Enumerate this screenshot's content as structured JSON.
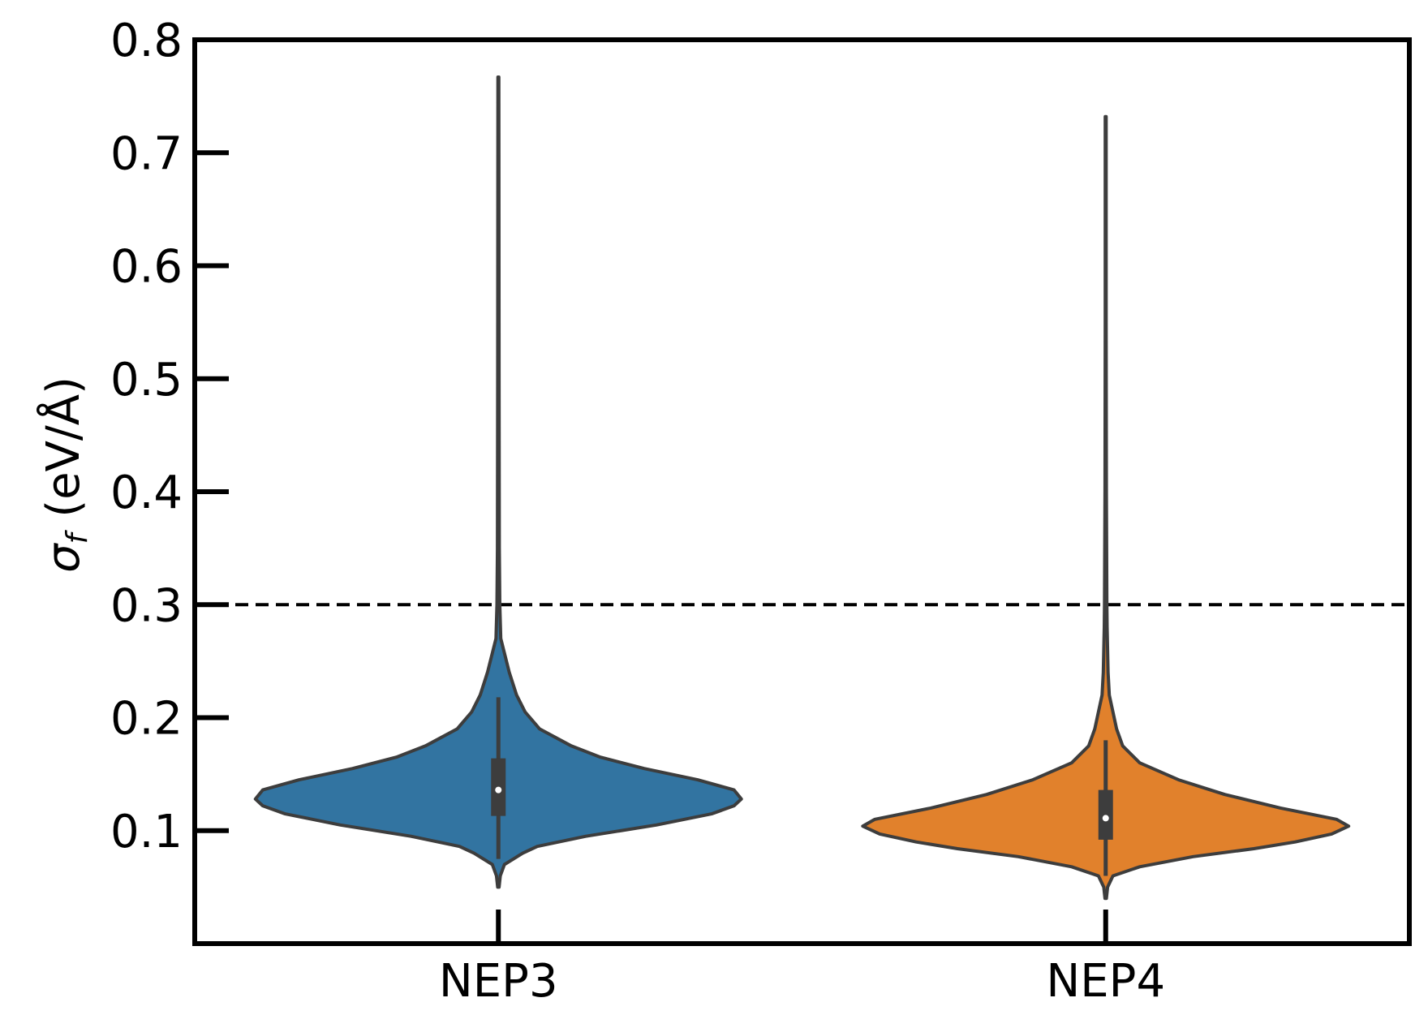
{
  "chart_data": {
    "type": "violin",
    "title": "",
    "xlabel": "",
    "ylabel": {
      "symbol": "σ",
      "subscript": "f",
      "unit": "(eV/Å)"
    },
    "ylim": [
      0.0,
      0.8
    ],
    "yticks": [
      0.1,
      0.2,
      0.3,
      0.4,
      0.5,
      0.6,
      0.7,
      0.8
    ],
    "ytick_labels": [
      "0.1",
      "0.2",
      "0.3",
      "0.4",
      "0.5",
      "0.6",
      "0.7",
      "0.8"
    ],
    "categories": [
      "NEP3",
      "NEP4"
    ],
    "reference_line": {
      "y": 0.3,
      "style": "dashed",
      "color": "#000000"
    },
    "grid": false,
    "series": [
      {
        "category": "NEP3",
        "color": "#3274a1",
        "min": 0.05,
        "q1": 0.113,
        "median": 0.136,
        "q3": 0.164,
        "whisker_low": 0.075,
        "whisker_high": 0.218,
        "max": 0.767,
        "density": [
          [
            0.05,
            0.003
          ],
          [
            0.06,
            0.008
          ],
          [
            0.07,
            0.025
          ],
          [
            0.08,
            0.1
          ],
          [
            0.086,
            0.16
          ],
          [
            0.095,
            0.36
          ],
          [
            0.105,
            0.65
          ],
          [
            0.115,
            0.88
          ],
          [
            0.122,
            0.97
          ],
          [
            0.128,
            1.0
          ],
          [
            0.136,
            0.97
          ],
          [
            0.145,
            0.82
          ],
          [
            0.155,
            0.6
          ],
          [
            0.165,
            0.42
          ],
          [
            0.175,
            0.3
          ],
          [
            0.19,
            0.17
          ],
          [
            0.205,
            0.11
          ],
          [
            0.22,
            0.075
          ],
          [
            0.24,
            0.045
          ],
          [
            0.27,
            0.01
          ],
          [
            0.3,
            0.006
          ],
          [
            0.35,
            0.004
          ],
          [
            0.5,
            0.003
          ],
          [
            0.767,
            0.002
          ]
        ]
      },
      {
        "category": "NEP4",
        "color": "#e1812c",
        "min": 0.04,
        "q1": 0.092,
        "median": 0.111,
        "q3": 0.136,
        "whisker_low": 0.06,
        "whisker_high": 0.18,
        "max": 0.732,
        "density": [
          [
            0.04,
            0.003
          ],
          [
            0.05,
            0.008
          ],
          [
            0.06,
            0.03
          ],
          [
            0.068,
            0.14
          ],
          [
            0.077,
            0.36
          ],
          [
            0.084,
            0.61
          ],
          [
            0.09,
            0.78
          ],
          [
            0.097,
            0.93
          ],
          [
            0.104,
            1.0
          ],
          [
            0.11,
            0.95
          ],
          [
            0.12,
            0.72
          ],
          [
            0.132,
            0.49
          ],
          [
            0.145,
            0.3
          ],
          [
            0.16,
            0.14
          ],
          [
            0.175,
            0.07
          ],
          [
            0.19,
            0.045
          ],
          [
            0.205,
            0.03
          ],
          [
            0.22,
            0.015
          ],
          [
            0.24,
            0.01
          ],
          [
            0.28,
            0.006
          ],
          [
            0.3,
            0.005
          ],
          [
            0.4,
            0.003
          ],
          [
            0.55,
            0.002
          ],
          [
            0.732,
            0.002
          ]
        ]
      }
    ]
  }
}
